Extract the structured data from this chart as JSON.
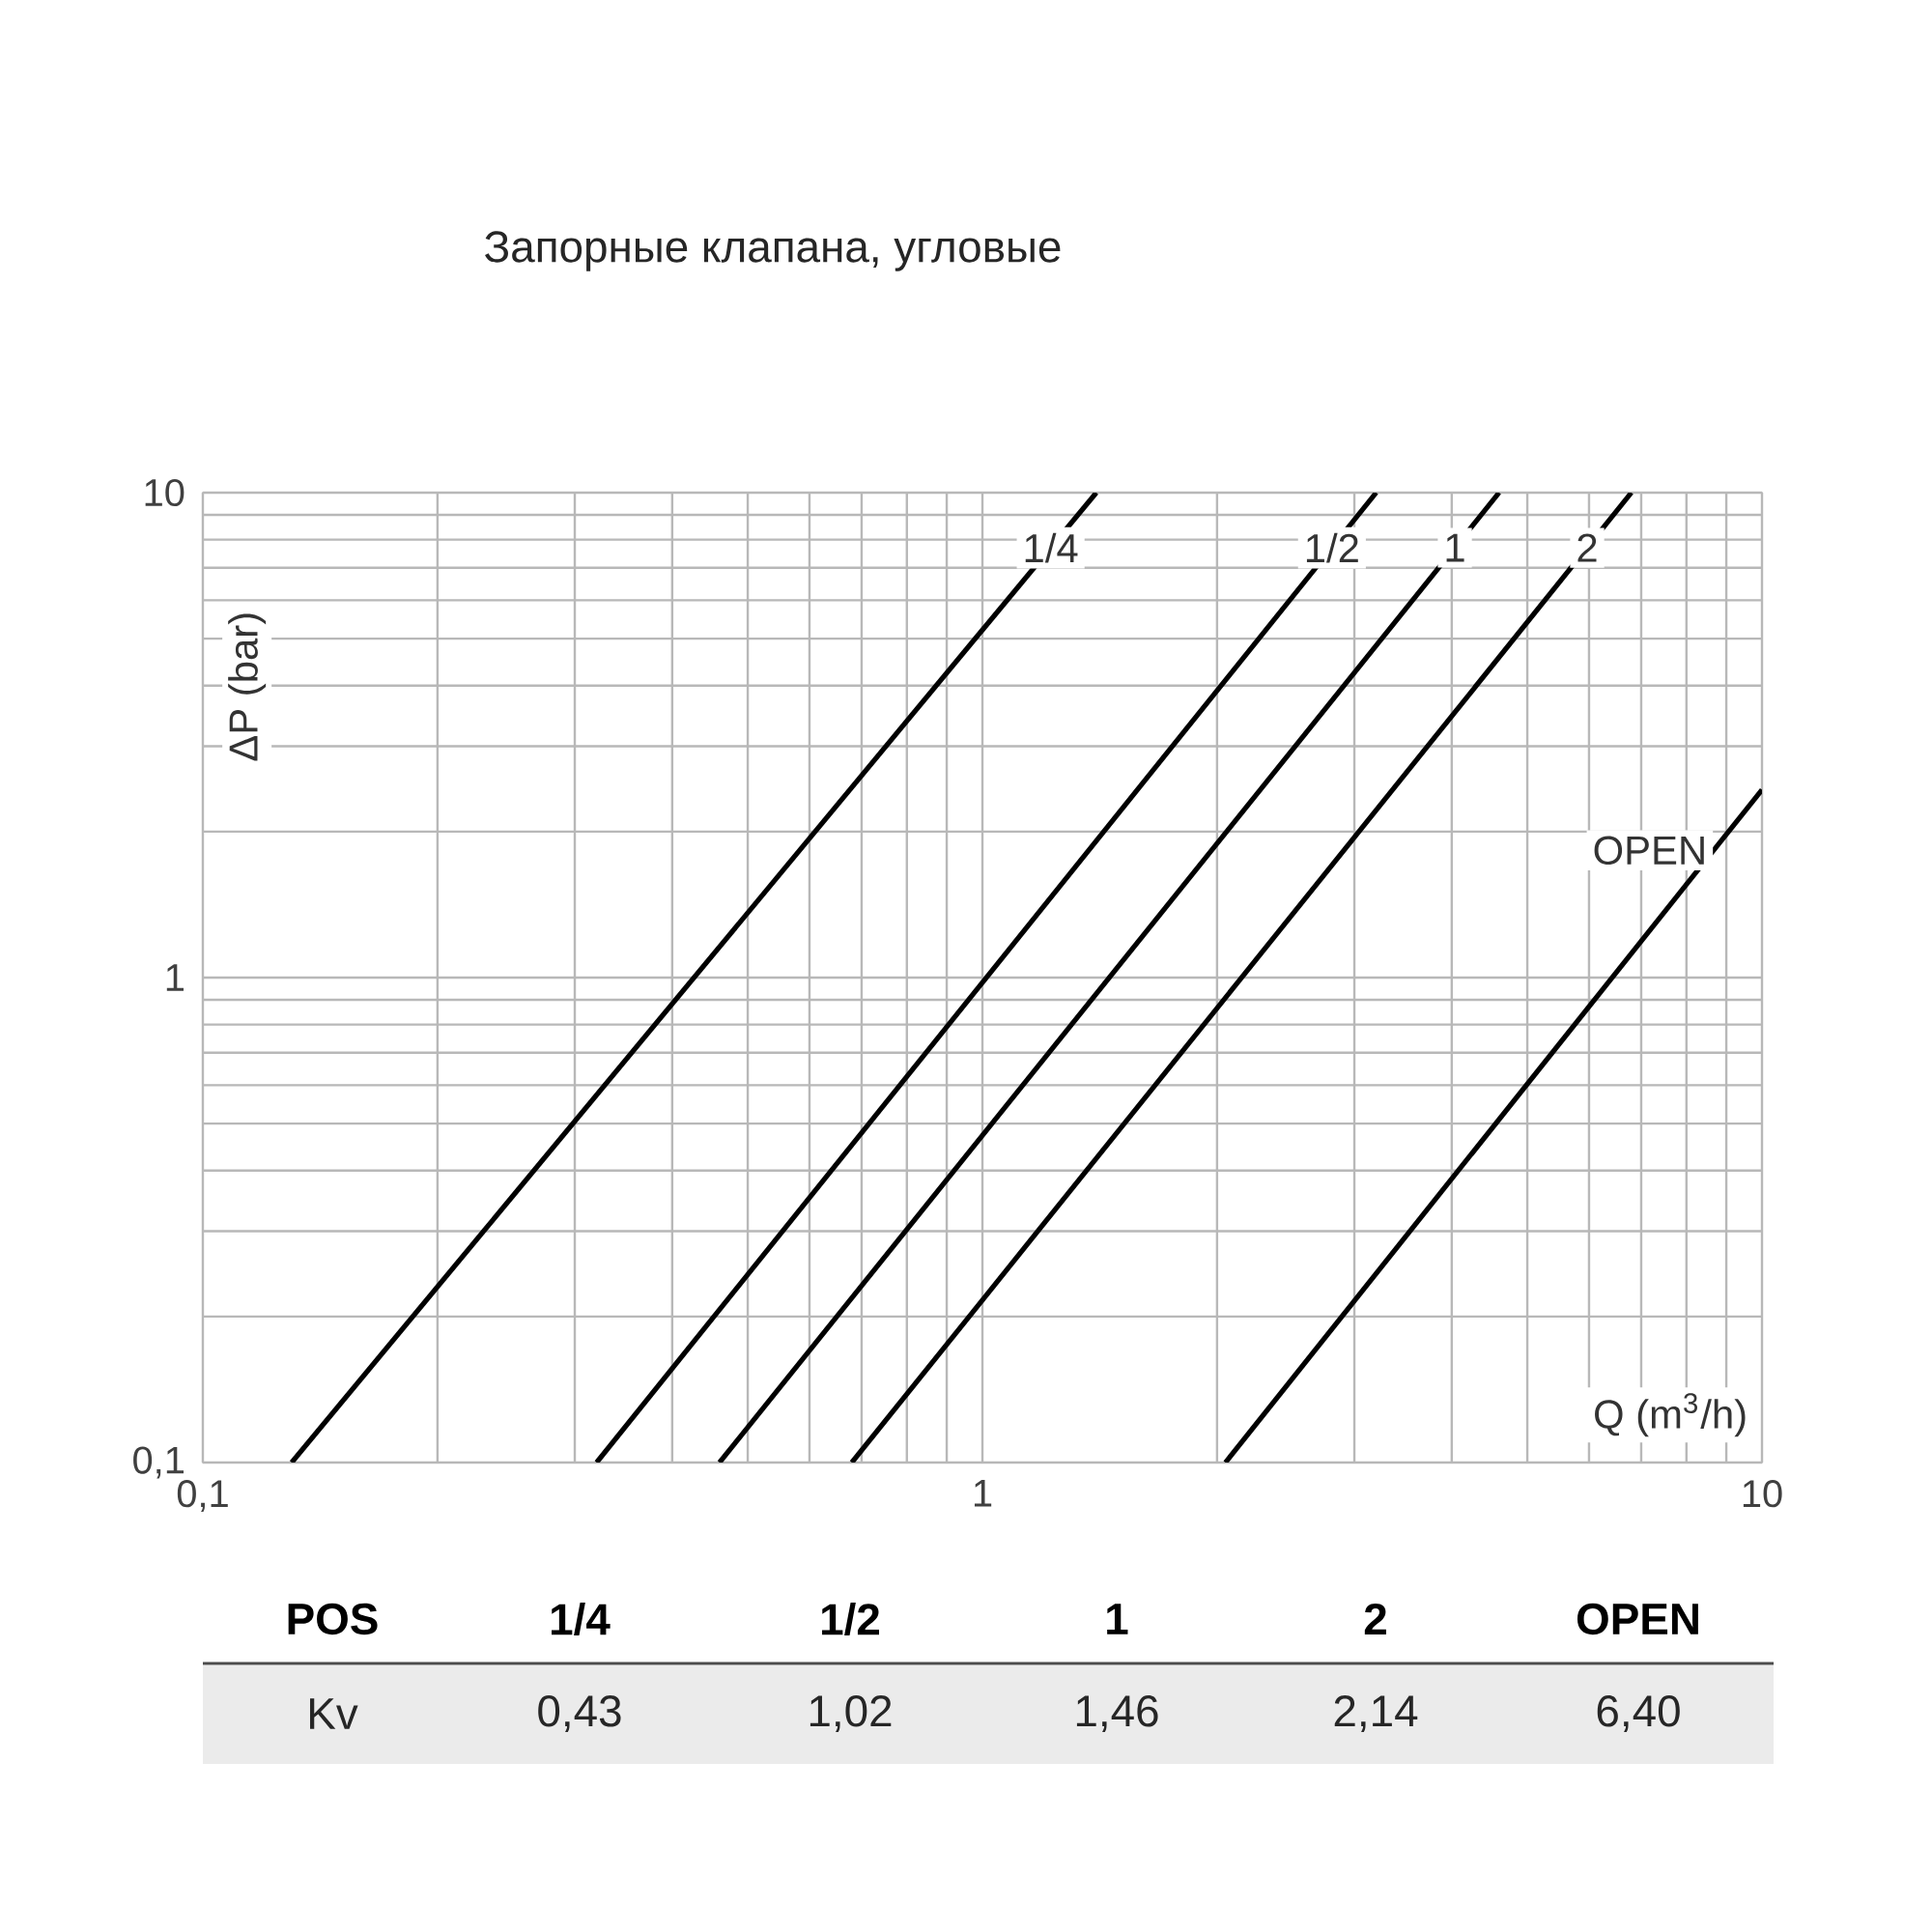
{
  "chart_data": {
    "type": "line",
    "title": "Запорные клапана, угловые",
    "xlabel": "Q (m$^{3}$/h)",
    "ylabel": "ΔP (bar)",
    "log": "xy",
    "grid": true,
    "xlim": [
      0.1,
      10
    ],
    "ylim": [
      0.1,
      10
    ],
    "xticks": [
      {
        "value": 0.1,
        "label": "0,1"
      },
      1,
      10
    ],
    "yticks": [
      {
        "value": 0.1,
        "label": "0,1"
      },
      1,
      10
    ],
    "series": [
      {
        "name": "1/4",
        "color": "#000000",
        "x": [
          0.13,
          1.4
        ],
        "values": [
          0.1,
          10
        ]
      },
      {
        "name": "1/2",
        "color": "#000000",
        "x": [
          0.32,
          3.2
        ],
        "values": [
          0.1,
          10
        ]
      },
      {
        "name": "1",
        "color": "#000000",
        "x": [
          0.46,
          4.6
        ],
        "values": [
          0.1,
          10
        ]
      },
      {
        "name": "2",
        "color": "#000000",
        "x": [
          0.68,
          6.8
        ],
        "values": [
          0.1,
          10
        ]
      },
      {
        "name": "OPEN",
        "color": "#000000",
        "x": [
          2.05,
          10
        ],
        "values": [
          0.1,
          2.44
        ]
      }
    ],
    "annotations": [
      "POS",
      "Kv",
      "0,43",
      "1,02",
      "1,46",
      "2,14",
      "6,40"
    ]
  }
}
